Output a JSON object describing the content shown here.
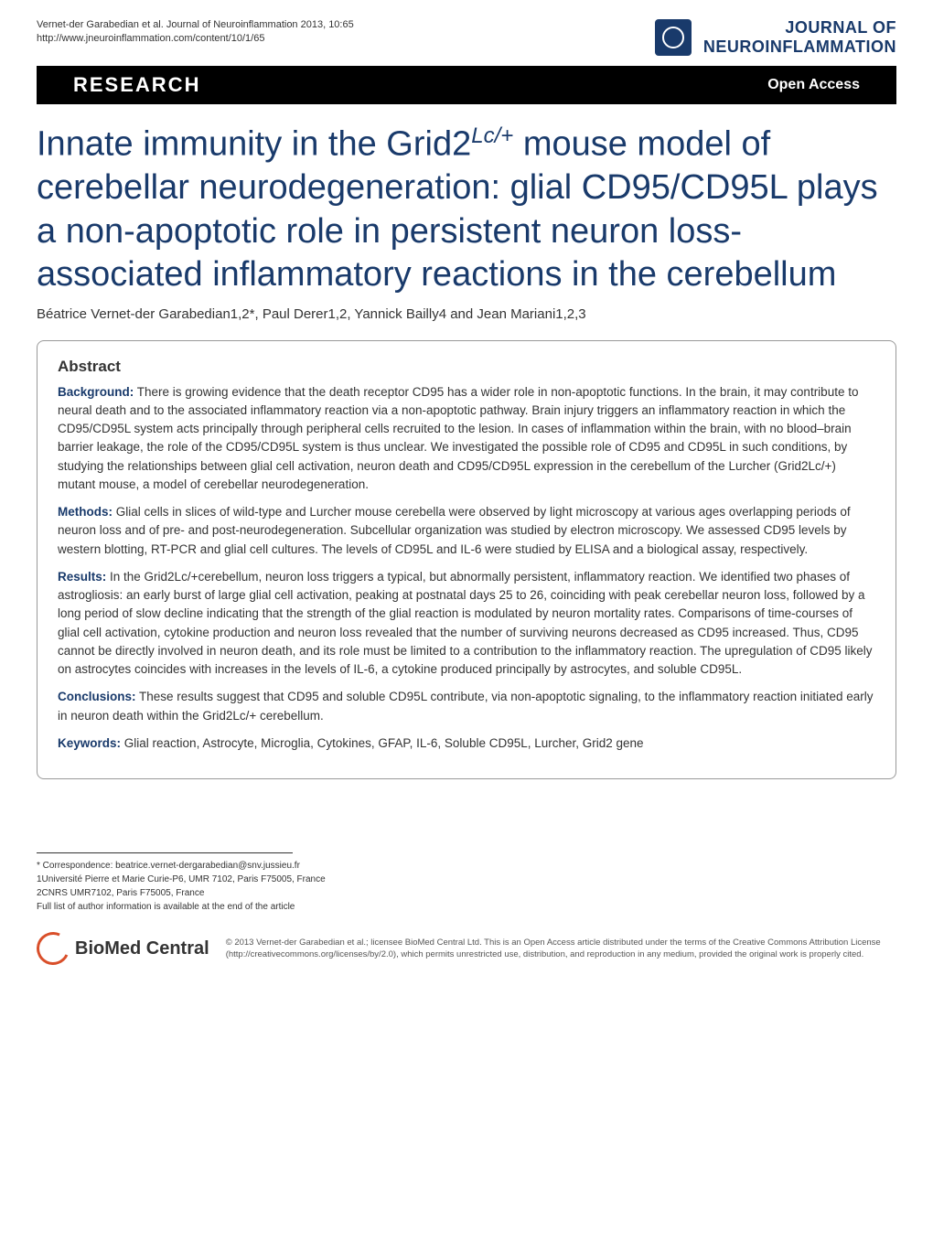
{
  "header": {
    "citation_line1": "Vernet-der Garabedian et al. Journal of Neuroinflammation 2013, 10:65",
    "citation_line2": "http://www.jneuroinflammation.com/content/10/1/65",
    "journal_line1": "JOURNAL OF",
    "journal_line2": "NEUROINFLAMMATION"
  },
  "blackbar": {
    "research": "RESEARCH",
    "open_access": "Open Access"
  },
  "title": {
    "pre": "Innate immunity in the Grid2",
    "sup": "Lc/+",
    "post": " mouse model of cerebellar neurodegeneration: glial CD95/CD95L plays a non-apoptotic role in persistent neuron loss-associated inflammatory reactions in the cerebellum"
  },
  "authors": "Béatrice Vernet-der Garabedian1,2*, Paul Derer1,2, Yannick Bailly4 and Jean Mariani1,2,3",
  "abstract": {
    "heading": "Abstract",
    "background_label": "Background:",
    "background_text": " There is growing evidence that the death receptor CD95 has a wider role in non-apoptotic functions. In the brain, it may contribute to neural death and to the associated inflammatory reaction via a non-apoptotic pathway. Brain injury triggers an inflammatory reaction in which the CD95/CD95L system acts principally through peripheral cells recruited to the lesion. In cases of inflammation within the brain, with no blood–brain barrier leakage, the role of the CD95/CD95L system is thus unclear. We investigated the possible role of CD95 and CD95L in such conditions, by studying the relationships between glial cell activation, neuron death and CD95/CD95L expression in the cerebellum of the Lurcher (Grid2Lc/+) mutant mouse, a model of cerebellar neurodegeneration.",
    "methods_label": "Methods:",
    "methods_text": " Glial cells in slices of wild-type and Lurcher mouse cerebella were observed by light microscopy at various ages overlapping periods of neuron loss and of pre- and post-neurodegeneration. Subcellular organization was studied by electron microscopy. We assessed CD95 levels by western blotting, RT-PCR and glial cell cultures. The levels of CD95L and IL-6 were studied by ELISA and a biological assay, respectively.",
    "results_label": "Results:",
    "results_text": " In the Grid2Lc/+cerebellum, neuron loss triggers a typical, but abnormally persistent, inflammatory reaction. We identified two phases of astrogliosis: an early burst of large glial cell activation, peaking at postnatal days 25 to 26, coinciding with peak cerebellar neuron loss, followed by a long period of slow decline indicating that the strength of the glial reaction is modulated by neuron mortality rates. Comparisons of time-courses of glial cell activation, cytokine production and neuron loss revealed that the number of surviving neurons decreased as CD95 increased. Thus, CD95 cannot be directly involved in neuron death, and its role must be limited to a contribution to the inflammatory reaction. The upregulation of CD95 likely on astrocytes coincides with increases in the levels of IL-6, a cytokine produced principally by astrocytes, and soluble CD95L.",
    "conclusions_label": "Conclusions:",
    "conclusions_text": " These results suggest that CD95 and soluble CD95L contribute, via non-apoptotic signaling, to the inflammatory reaction initiated early in neuron death within the Grid2Lc/+ cerebellum.",
    "keywords_label": "Keywords:",
    "keywords_text": " Glial reaction, Astrocyte, Microglia, Cytokines, GFAP, IL-6, Soluble CD95L, Lurcher, Grid2 gene"
  },
  "footer": {
    "correspondence": "* Correspondence: beatrice.vernet-dergarabedian@snv.jussieu.fr",
    "affil1": "1Université Pierre et Marie Curie-P6, UMR 7102, Paris F75005, France",
    "affil2": "2CNRS UMR7102, Paris F75005, France",
    "affil_note": "Full list of author information is available at the end of the article",
    "biomed_text": "BioMed Central",
    "license": "© 2013 Vernet-der Garabedian et al.; licensee BioMed Central Ltd. This is an Open Access article distributed under the terms of the Creative Commons Attribution License (http://creativecommons.org/licenses/by/2.0), which permits unrestricted use, distribution, and reproduction in any medium, provided the original work is properly cited."
  }
}
